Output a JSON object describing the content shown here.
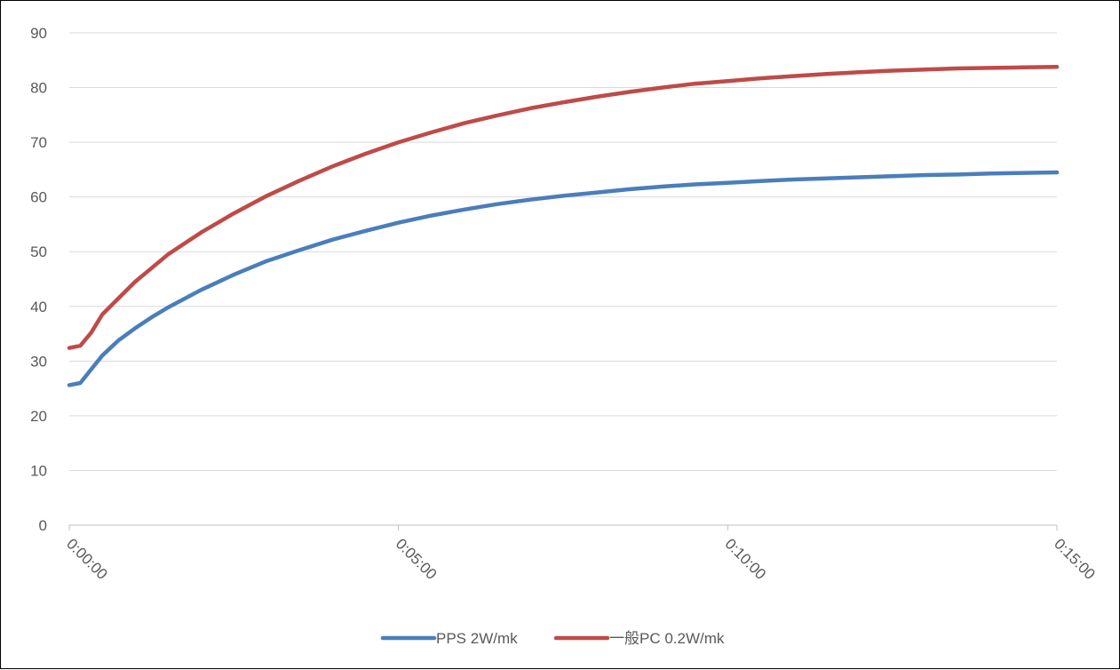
{
  "chart_data": {
    "type": "line",
    "title": "",
    "xlabel": "",
    "ylabel": "",
    "ylim": [
      0,
      90
    ],
    "y_ticks": [
      "0",
      "10",
      "20",
      "30",
      "40",
      "50",
      "60",
      "70",
      "80",
      "90"
    ],
    "xlim": [
      "0:00:00",
      "0:15:00"
    ],
    "x_ticks": [
      "0:00:00",
      "0:05:00",
      "0:10:00",
      "0:15:00"
    ],
    "grid": true,
    "legend_position": "bottom",
    "series": [
      {
        "name": "PPS 2W/mk",
        "color": "#4a7ebb",
        "points": [
          [
            "0:00:00",
            25.6
          ],
          [
            "0:00:10",
            26.0
          ],
          [
            "0:00:20",
            28.5
          ],
          [
            "0:00:30",
            31.0
          ],
          [
            "0:00:45",
            33.8
          ],
          [
            "0:01:00",
            36.0
          ],
          [
            "0:01:15",
            38.0
          ],
          [
            "0:01:30",
            39.8
          ],
          [
            "0:02:00",
            43.0
          ],
          [
            "0:02:30",
            45.8
          ],
          [
            "0:03:00",
            48.3
          ],
          [
            "0:03:30",
            50.3
          ],
          [
            "0:04:00",
            52.2
          ],
          [
            "0:04:30",
            53.8
          ],
          [
            "0:05:00",
            55.3
          ],
          [
            "0:05:30",
            56.6
          ],
          [
            "0:06:00",
            57.7
          ],
          [
            "0:06:30",
            58.7
          ],
          [
            "0:07:00",
            59.5
          ],
          [
            "0:07:30",
            60.2
          ],
          [
            "0:08:00",
            60.8
          ],
          [
            "0:08:30",
            61.4
          ],
          [
            "0:09:00",
            61.9
          ],
          [
            "0:09:30",
            62.3
          ],
          [
            "0:10:00",
            62.6
          ],
          [
            "0:10:30",
            62.9
          ],
          [
            "0:11:00",
            63.2
          ],
          [
            "0:11:30",
            63.4
          ],
          [
            "0:12:00",
            63.6
          ],
          [
            "0:12:30",
            63.8
          ],
          [
            "0:13:00",
            64.0
          ],
          [
            "0:13:30",
            64.1
          ],
          [
            "0:14:00",
            64.3
          ],
          [
            "0:14:30",
            64.4
          ],
          [
            "0:15:00",
            64.5
          ]
        ]
      },
      {
        "name": "一般PC 0.2W/mk",
        "color": "#be4b48",
        "points": [
          [
            "0:00:00",
            32.4
          ],
          [
            "0:00:10",
            32.8
          ],
          [
            "0:00:20",
            35.2
          ],
          [
            "0:00:30",
            38.5
          ],
          [
            "0:00:45",
            41.5
          ],
          [
            "0:01:00",
            44.5
          ],
          [
            "0:01:15",
            47.0
          ],
          [
            "0:01:30",
            49.5
          ],
          [
            "0:02:00",
            53.5
          ],
          [
            "0:02:30",
            57.0
          ],
          [
            "0:03:00",
            60.2
          ],
          [
            "0:03:30",
            63.0
          ],
          [
            "0:04:00",
            65.6
          ],
          [
            "0:04:30",
            67.9
          ],
          [
            "0:05:00",
            70.0
          ],
          [
            "0:05:30",
            71.8
          ],
          [
            "0:06:00",
            73.5
          ],
          [
            "0:06:30",
            74.9
          ],
          [
            "0:07:00",
            76.2
          ],
          [
            "0:07:30",
            77.3
          ],
          [
            "0:08:00",
            78.3
          ],
          [
            "0:08:30",
            79.2
          ],
          [
            "0:09:00",
            80.0
          ],
          [
            "0:09:30",
            80.7
          ],
          [
            "0:10:00",
            81.2
          ],
          [
            "0:10:30",
            81.7
          ],
          [
            "0:11:00",
            82.1
          ],
          [
            "0:11:30",
            82.5
          ],
          [
            "0:12:00",
            82.8
          ],
          [
            "0:12:30",
            83.1
          ],
          [
            "0:13:00",
            83.3
          ],
          [
            "0:13:30",
            83.5
          ],
          [
            "0:14:00",
            83.6
          ],
          [
            "0:14:30",
            83.7
          ],
          [
            "0:15:00",
            83.8
          ]
        ]
      }
    ]
  }
}
